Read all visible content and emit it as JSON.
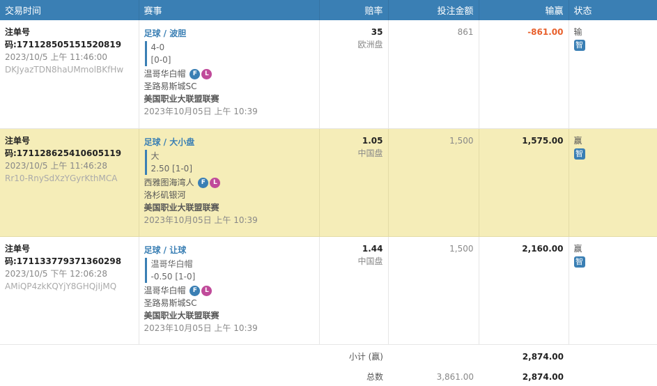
{
  "headers": {
    "time": "交易时间",
    "event": "赛事",
    "odds": "赔率",
    "stake": "投注金额",
    "winloss": "输赢",
    "status": "状态"
  },
  "rows": [
    {
      "bet_id": "注单号码:171128505151520819",
      "datetime": "2023/10/5 上午 11:46:00",
      "ref": "DKJyazTDN8haUMmolBKfHw",
      "sport": "足球 / 波胆",
      "sel1": "4-0",
      "sel2": "[0-0]",
      "home": "温哥华白帽",
      "away": "圣路易斯城SC",
      "league": "美国职业大联盟联赛",
      "match_time": "2023年10月05日 上午 10:39",
      "odds": "35",
      "odds_type": "欧洲盘",
      "stake": "861",
      "winloss": "-861.00",
      "status": "输",
      "highlight": false
    },
    {
      "bet_id": "注单号码:171128625410605119",
      "datetime": "2023/10/5 上午 11:46:28",
      "ref": "Rr10-RnySdXzYGyrKthMCA",
      "sport": "足球 / 大小盘",
      "sel1": "大",
      "sel2": "2.50 [1-0]",
      "home": "西雅图海湾人",
      "away": "洛杉矶银河",
      "league": "美国职业大联盟联赛",
      "match_time": "2023年10月05日 上午 10:39",
      "odds": "1.05",
      "odds_type": "中国盘",
      "stake": "1,500",
      "winloss": "1,575.00",
      "status": "赢",
      "highlight": true
    },
    {
      "bet_id": "注单号码:171133779371360298",
      "datetime": "2023/10/5 下午 12:06:28",
      "ref": "AMiQP4zkKQYjY8GHQjIjMQ",
      "sport": "足球 / 让球",
      "sel1": "温哥华白帽",
      "sel2": "-0.50 [1-0]",
      "home": "温哥华白帽",
      "away": "圣路易斯城SC",
      "league": "美国职业大联盟联赛",
      "match_time": "2023年10月05日 上午 10:39",
      "odds": "1.44",
      "odds_type": "中国盘",
      "stake": "1,500",
      "winloss": "2,160.00",
      "status": "赢",
      "highlight": false
    }
  ],
  "badges": {
    "f": "F",
    "l": "L"
  },
  "status_icon": {
    "name": "smart-icon",
    "glyph": "智"
  },
  "colors": {
    "header": "#3a7fb4",
    "highlight": "#f5edb8",
    "loss": "#e8602c"
  },
  "footer": {
    "subtotal_label": "小计 (赢)",
    "subtotal_winloss": "2,874.00",
    "total_label": "总数",
    "total_stake": "3,861.00",
    "total_winloss": "2,874.00"
  }
}
